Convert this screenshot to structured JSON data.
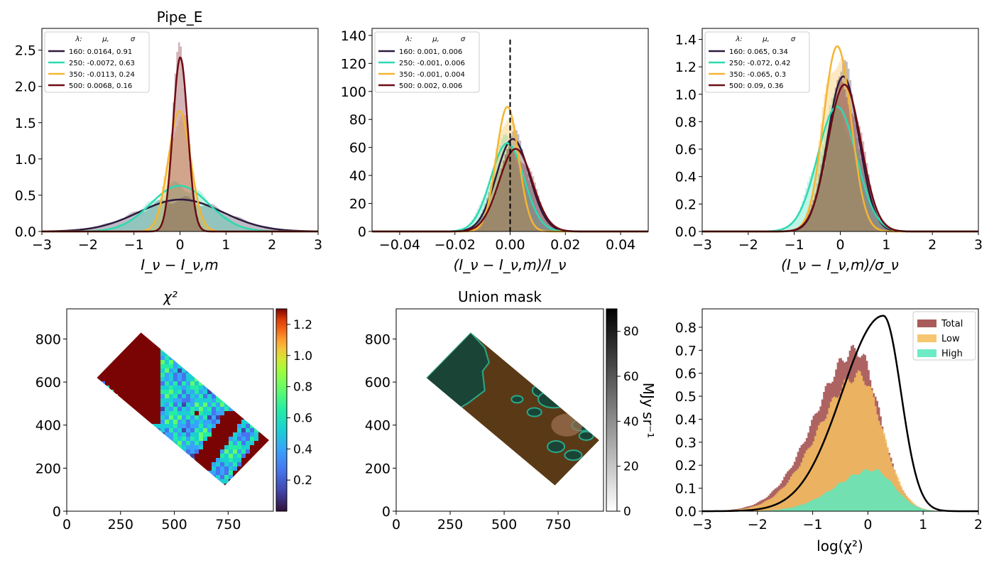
{
  "chart_data": [
    {
      "type": "area",
      "title": "Pipe_E",
      "xlabel": "I_ν − I_ν,m",
      "xlim": [
        -3,
        3
      ],
      "ylim": [
        0,
        2.8
      ],
      "xticks": [
        "−3",
        "−2",
        "−1",
        "0",
        "1",
        "2",
        "3"
      ],
      "yticks": [
        "0.0",
        "0.5",
        "1.0",
        "1.5",
        "2.0",
        "2.5"
      ],
      "legend_header": [
        "λ:",
        "μ,",
        "σ"
      ],
      "legend_position": "upper left",
      "series": [
        {
          "name": "160: 0.0164,  0.91",
          "mu": 0.0164,
          "sigma": 0.91,
          "peak": 0.44,
          "color": "#2d1a3e"
        },
        {
          "name": "250: -0.0072,  0.63",
          "mu": -0.0072,
          "sigma": 0.63,
          "peak": 0.63,
          "color": "#2ed9b0"
        },
        {
          "name": "350: -0.0113,  0.24",
          "mu": -0.0113,
          "sigma": 0.24,
          "peak": 1.66,
          "color": "#f4b533"
        },
        {
          "name": "500: 0.0068,  0.16",
          "mu": 0.0068,
          "sigma": 0.16,
          "peak": 2.4,
          "color": "#6e0b14"
        }
      ]
    },
    {
      "type": "area",
      "title": "",
      "xlabel": "(I_ν − I_ν,m)/I_ν",
      "xlim": [
        -0.05,
        0.05
      ],
      "ylim": [
        0,
        145
      ],
      "xticks": [
        "−0.04",
        "−0.02",
        "0.00",
        "0.02",
        "0.04"
      ],
      "yticks": [
        "0",
        "20",
        "40",
        "60",
        "80",
        "100",
        "120",
        "140"
      ],
      "legend_header": [
        "λ:",
        "μ,",
        "σ"
      ],
      "legend_position": "upper left",
      "vline_x": 0.0,
      "series": [
        {
          "name": "160: 0.001,  0.006",
          "mu": 0.001,
          "sigma": 0.006,
          "peak": 66,
          "color": "#2d1a3e"
        },
        {
          "name": "250: -0.001,  0.006",
          "mu": -0.001,
          "sigma": 0.006,
          "peak": 63,
          "color": "#2ed9b0"
        },
        {
          "name": "350: -0.001,  0.004",
          "mu": -0.001,
          "sigma": 0.004,
          "peak": 89,
          "color": "#f4b533"
        },
        {
          "name": "500: 0.002,  0.006",
          "mu": 0.002,
          "sigma": 0.006,
          "peak": 59,
          "color": "#6e0b14"
        }
      ]
    },
    {
      "type": "area",
      "title": "",
      "xlabel": "(I_ν − I_ν,m)/σ_ν",
      "xlim": [
        -3,
        3
      ],
      "ylim": [
        0,
        1.48
      ],
      "xticks": [
        "−3",
        "−2",
        "−1",
        "0",
        "1",
        "2",
        "3"
      ],
      "yticks": [
        "0.0",
        "0.2",
        "0.4",
        "0.6",
        "0.8",
        "1.0",
        "1.2",
        "1.4"
      ],
      "legend_header": [
        "λ:",
        "μ,",
        "σ"
      ],
      "legend_position": "upper left",
      "series": [
        {
          "name": "160: 0.065,  0.34",
          "mu": 0.065,
          "sigma": 0.34,
          "peak": 1.13,
          "color": "#2d1a3e"
        },
        {
          "name": "250: -0.072,  0.42",
          "mu": -0.072,
          "sigma": 0.42,
          "peak": 0.91,
          "color": "#2ed9b0"
        },
        {
          "name": "350: -0.065,  0.3",
          "mu": -0.065,
          "sigma": 0.3,
          "peak": 1.35,
          "color": "#f4b533"
        },
        {
          "name": "500: 0.09,  0.36",
          "mu": 0.09,
          "sigma": 0.36,
          "peak": 1.07,
          "color": "#6e0b14"
        }
      ]
    },
    {
      "type": "heatmap",
      "title": "χ²",
      "xlim": [
        0,
        960
      ],
      "ylim": [
        0,
        940
      ],
      "xticks": [
        "0",
        "250",
        "500",
        "750"
      ],
      "yticks": [
        "0",
        "200",
        "400",
        "600",
        "800"
      ],
      "colormap": "turbo",
      "colorbar_range": [
        0.0,
        1.3
      ],
      "colorbar_ticks": [
        "0.2",
        "0.4",
        "0.6",
        "0.8",
        "1.0",
        "1.2"
      ],
      "footprint_corners": [
        [
          140,
          620
        ],
        [
          345,
          830
        ],
        [
          940,
          330
        ],
        [
          735,
          120
        ]
      ]
    },
    {
      "type": "heatmap",
      "title": "Union mask",
      "xlim": [
        0,
        960
      ],
      "ylim": [
        0,
        940
      ],
      "xticks": [
        "0",
        "250",
        "500",
        "750"
      ],
      "yticks": [
        "0",
        "200",
        "400",
        "600",
        "800"
      ],
      "colormap": "gray_r",
      "colorbar_range": [
        0,
        90
      ],
      "colorbar_ticks": [
        "0",
        "20",
        "40",
        "60",
        "80"
      ],
      "colorbar_label": "MJy sr⁻¹",
      "footprint_corners": [
        [
          140,
          620
        ],
        [
          345,
          830
        ],
        [
          940,
          330
        ],
        [
          735,
          120
        ]
      ]
    },
    {
      "type": "bar",
      "title": "",
      "xlabel": "log(χ²)",
      "xlim": [
        -3,
        2
      ],
      "ylim": [
        0,
        0.88
      ],
      "xticks": [
        "−3",
        "−2",
        "−1",
        "0",
        "1",
        "2"
      ],
      "yticks": [
        "0.0",
        "0.1",
        "0.2",
        "0.3",
        "0.4",
        "0.5",
        "0.6",
        "0.7",
        "0.8"
      ],
      "legend_position": "upper right",
      "series": [
        {
          "name": "Total",
          "color": "#a04848",
          "mu": -0.2,
          "sigma": 0.55,
          "peak": 0.7
        },
        {
          "name": "Low",
          "color": "#f5c060",
          "mu": -0.15,
          "sigma": 0.55,
          "peak": 0.59
        },
        {
          "name": "High",
          "color": "#5de8c0",
          "mu": 0.1,
          "sigma": 0.5,
          "peak": 0.18
        }
      ],
      "curve": {
        "peak_x": 0.28,
        "peak_y": 0.85,
        "color": "#000000"
      }
    }
  ]
}
